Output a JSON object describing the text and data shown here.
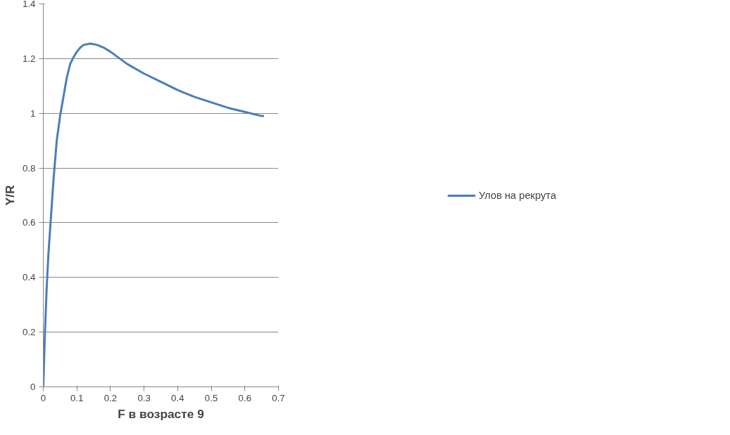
{
  "chart_data": {
    "type": "line",
    "xlabel": "F в возрасте 9",
    "ylabel": "Y/R",
    "x": [
      0,
      0.005,
      0.01,
      0.015,
      0.02,
      0.025,
      0.03,
      0.04,
      0.05,
      0.06,
      0.07,
      0.08,
      0.09,
      0.1,
      0.11,
      0.12,
      0.14,
      0.16,
      0.18,
      0.2,
      0.25,
      0.3,
      0.35,
      0.4,
      0.45,
      0.5,
      0.55,
      0.6,
      0.65,
      0.657
    ],
    "series": [
      {
        "name": "Улов на рекрута",
        "color": "#4a7ebb",
        "values": [
          0,
          0.2,
          0.36,
          0.48,
          0.57,
          0.66,
          0.75,
          0.9,
          0.99,
          1.06,
          1.13,
          1.18,
          1.205,
          1.225,
          1.24,
          1.25,
          1.255,
          1.25,
          1.24,
          1.225,
          1.18,
          1.145,
          1.115,
          1.085,
          1.06,
          1.04,
          1.02,
          1.005,
          0.99,
          0.99
        ]
      }
    ],
    "xlim": [
      0,
      0.7
    ],
    "ylim": [
      0,
      1.4
    ],
    "xticks": [
      0,
      0.1,
      0.2,
      0.3,
      0.4,
      0.5,
      0.6,
      0.7
    ],
    "yticks": [
      0,
      0.2,
      0.4,
      0.6,
      0.8,
      1,
      1.2,
      1.4
    ],
    "grid": "y",
    "legend": "right",
    "marker": "none",
    "line_style": "solid"
  }
}
